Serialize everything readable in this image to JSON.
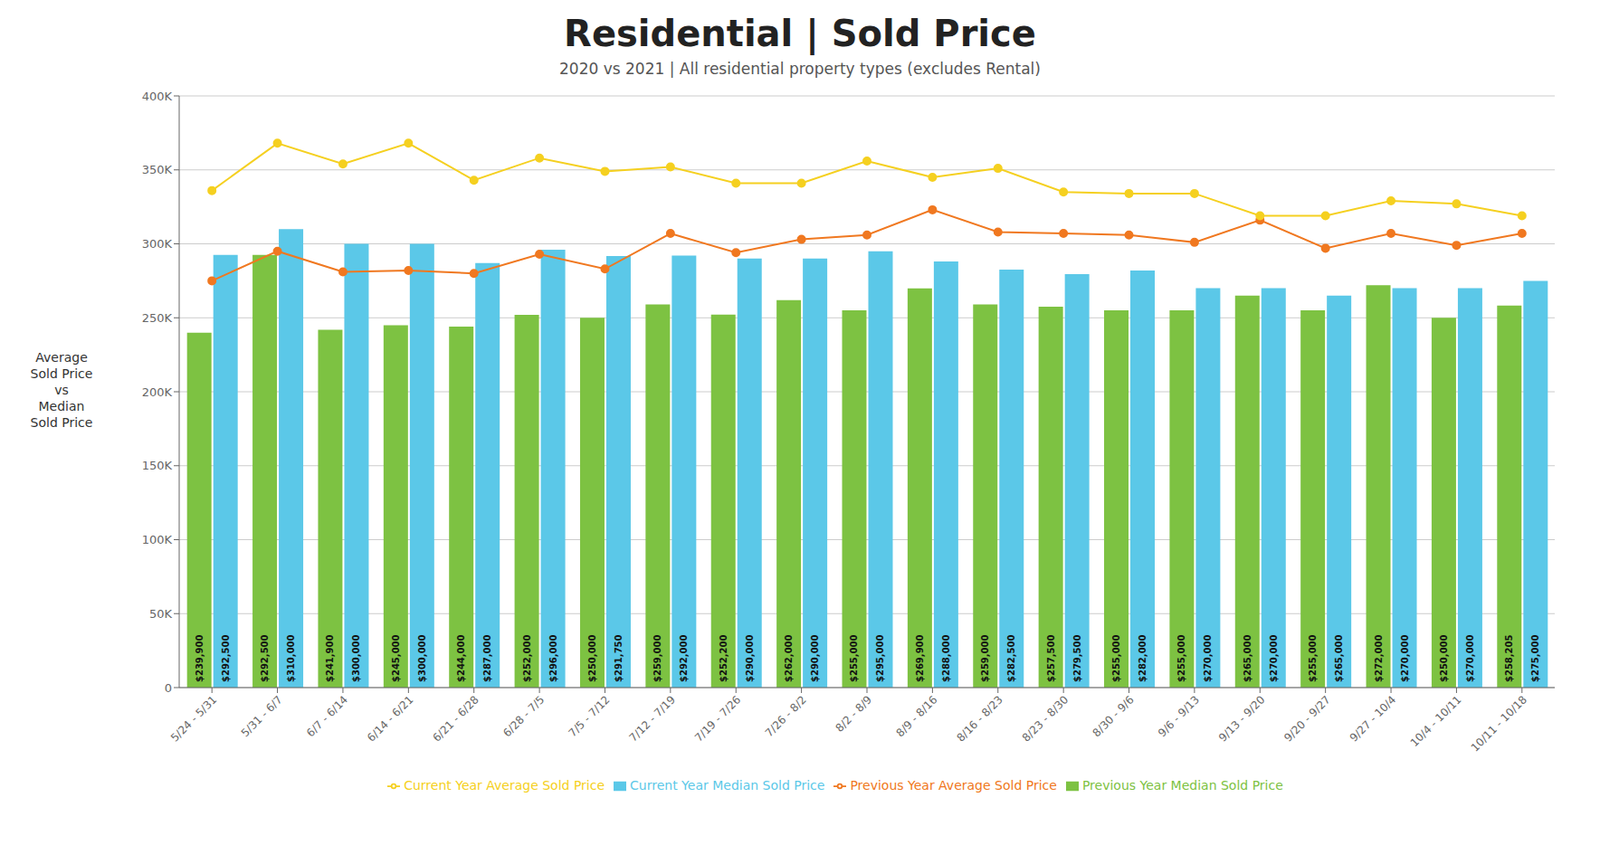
{
  "chart_data": {
    "type": "bar",
    "title": "Residential | Sold Price",
    "subtitle": "2020 vs 2021 | All residential property types (excludes Rental)",
    "ylabel": "Average\nSold Price\nvs\nMedian\nSold Price",
    "categories": [
      "5/24 - 5/31",
      "5/31 - 6/7",
      "6/7 - 6/14",
      "6/14 - 6/21",
      "6/21 - 6/28",
      "6/28 - 7/5",
      "7/5 - 7/12",
      "7/12 - 7/19",
      "7/19 - 7/26",
      "7/26 - 8/2",
      "8/2 - 8/9",
      "8/9 - 8/16",
      "8/16 - 8/23",
      "8/23 - 8/30",
      "8/30 - 9/6",
      "9/6 - 9/13",
      "9/13 - 9/20",
      "9/20 - 9/27",
      "9/27 - 10/4",
      "10/4 - 10/11",
      "10/11 - 10/18"
    ],
    "series": [
      {
        "name": "Previous Year Median Sold Price",
        "type": "bar",
        "color": "#7dc242",
        "values": [
          239900,
          292500,
          241900,
          245000,
          244000,
          252000,
          250000,
          259000,
          252200,
          262000,
          255000,
          269900,
          259000,
          257500,
          255000,
          255000,
          265000,
          255000,
          272000,
          250000,
          258205
        ],
        "value_labels": [
          "$239,900",
          "$292,500",
          "$241,900",
          "$245,000",
          "$244,000",
          "$252,000",
          "$250,000",
          "$259,000",
          "$252,200",
          "$262,000",
          "$255,000",
          "$269,900",
          "$259,000",
          "$257,500",
          "$255,000",
          "$255,000",
          "$265,000",
          "$255,000",
          "$272,000",
          "$250,000",
          "$258,205"
        ]
      },
      {
        "name": "Current Year Median Sold Price",
        "type": "bar",
        "color": "#5bc8e8",
        "values": [
          292500,
          310000,
          300000,
          300000,
          287000,
          296000,
          291750,
          292000,
          290000,
          290000,
          295000,
          288000,
          282500,
          279500,
          282000,
          270000,
          270000,
          265000,
          270000,
          270000,
          275000
        ],
        "value_labels": [
          "$292,500",
          "$310,000",
          "$300,000",
          "$300,000",
          "$287,000",
          "$296,000",
          "$291,750",
          "$292,000",
          "$290,000",
          "$290,000",
          "$295,000",
          "$288,000",
          "$282,500",
          "$279,500",
          "$282,000",
          "$270,000",
          "$270,000",
          "$265,000",
          "$270,000",
          "$270,000",
          "$275,000"
        ]
      },
      {
        "name": "Previous Year Average Sold Price",
        "type": "line",
        "color": "#f07820",
        "marker": "circle",
        "values": [
          275000,
          295000,
          281000,
          282000,
          280000,
          293000,
          283000,
          307000,
          294000,
          303000,
          306000,
          323000,
          308000,
          307000,
          306000,
          301000,
          316000,
          297000,
          307000,
          299000,
          307000
        ]
      },
      {
        "name": "Current Year Average Sold Price",
        "type": "line",
        "color": "#f5d020",
        "marker": "circle",
        "values": [
          336000,
          368000,
          354000,
          368000,
          343000,
          358000,
          349000,
          352000,
          341000,
          341000,
          356000,
          345000,
          351000,
          335000,
          334000,
          334000,
          319000,
          319000,
          329000,
          327000,
          319000
        ]
      }
    ],
    "ylim": [
      0,
      400000
    ],
    "yticks": [
      0,
      {
        "value": 50000,
        "label": "50K"
      },
      {
        "value": 100000,
        "label": "100K"
      },
      {
        "value": 150000,
        "label": "150K"
      },
      {
        "value": 200000,
        "label": "200K"
      },
      {
        "value": 250000,
        "label": "250K"
      },
      {
        "value": 300000,
        "label": "300K"
      },
      {
        "value": 350000,
        "label": "350K"
      },
      {
        "value": 400000,
        "label": "400K"
      }
    ],
    "grid": true,
    "data_labels": true,
    "legend": "bottom"
  }
}
